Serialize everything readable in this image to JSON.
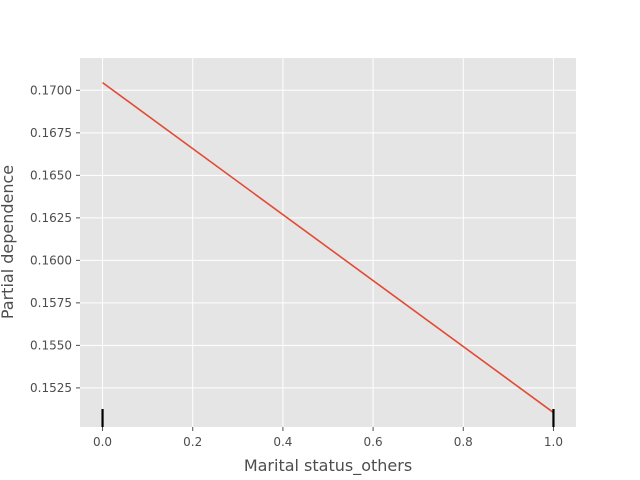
{
  "chart_data": {
    "type": "line",
    "title": "",
    "xlabel": "Marital status_others",
    "ylabel": "Partial dependence",
    "xlim": [
      -0.05,
      1.05
    ],
    "ylim": [
      0.1502,
      0.1719
    ],
    "x_ticks": [
      0.0,
      0.2,
      0.4,
      0.6,
      0.8,
      1.0
    ],
    "x_tick_labels": [
      "0.0",
      "0.2",
      "0.4",
      "0.6",
      "0.8",
      "1.0"
    ],
    "y_ticks": [
      0.1525,
      0.155,
      0.1575,
      0.16,
      0.1625,
      0.165,
      0.1675,
      0.17
    ],
    "y_tick_labels": [
      "0.1525",
      "0.1550",
      "0.1575",
      "0.1600",
      "0.1625",
      "0.1650",
      "0.1675",
      "0.1700"
    ],
    "grid": true,
    "series": [
      {
        "x": [
          0.0,
          1.0
        ],
        "y": [
          0.17045,
          0.15105
        ],
        "color": "#E24A33"
      }
    ],
    "rug_x": [
      0.0,
      1.0
    ],
    "colors": {
      "plot_background": "#E5E5E5",
      "grid": "#FFFFFF",
      "line": "#E24A33",
      "rug": "#000000",
      "text": "#4D4D4D"
    }
  }
}
